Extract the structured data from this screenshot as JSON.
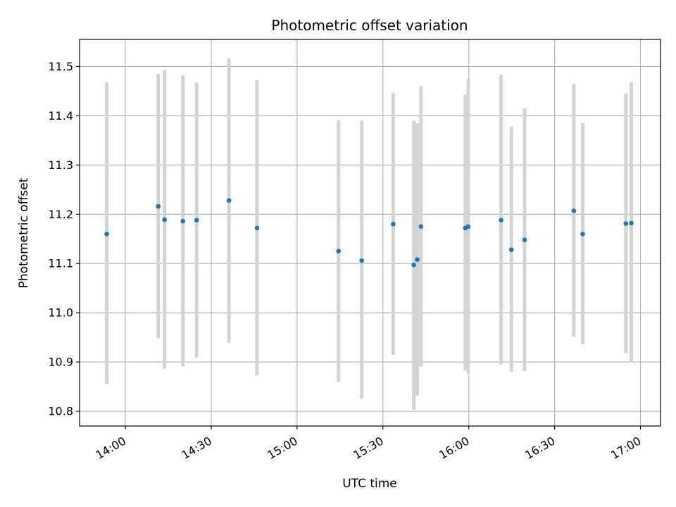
{
  "chart_data": {
    "type": "scatter",
    "title": "Photometric offset variation",
    "xlabel": "UTC time",
    "ylabel": "Photometric offset",
    "x_axis_type": "time",
    "xlim": [
      "13:44",
      "17:07"
    ],
    "ylim": [
      10.77,
      11.555
    ],
    "x_ticks": [
      "14:00",
      "14:30",
      "15:00",
      "15:30",
      "16:00",
      "16:30",
      "17:00"
    ],
    "y_ticks": [
      "10.8",
      "10.9",
      "11.0",
      "11.1",
      "11.2",
      "11.3",
      "11.4",
      "11.5"
    ],
    "grid": true,
    "marker_color": "#1f77b4",
    "errorbar_color": "#d3d3d3",
    "points": [
      {
        "x": "13:53.5",
        "y": 11.16,
        "ylow": 10.855,
        "yhigh": 11.468
      },
      {
        "x": "14:11.5",
        "y": 11.216,
        "ylow": 10.948,
        "yhigh": 11.485
      },
      {
        "x": "14:13.7",
        "y": 11.189,
        "ylow": 10.887,
        "yhigh": 11.493
      },
      {
        "x": "14:20.1",
        "y": 11.186,
        "ylow": 10.891,
        "yhigh": 11.482
      },
      {
        "x": "14:24.9",
        "y": 11.188,
        "ylow": 10.909,
        "yhigh": 11.468
      },
      {
        "x": "14:36.2",
        "y": 11.228,
        "ylow": 10.939,
        "yhigh": 11.517
      },
      {
        "x": "14:46.0",
        "y": 11.172,
        "ylow": 10.873,
        "yhigh": 11.472
      },
      {
        "x": "15:14.5",
        "y": 11.125,
        "ylow": 10.86,
        "yhigh": 11.391
      },
      {
        "x": "15:22.6",
        "y": 11.106,
        "ylow": 10.826,
        "yhigh": 11.39
      },
      {
        "x": "15:33.6",
        "y": 11.18,
        "ylow": 10.915,
        "yhigh": 11.446
      },
      {
        "x": "15:40.8",
        "y": 11.097,
        "ylow": 10.803,
        "yhigh": 11.39
      },
      {
        "x": "15:42.0",
        "y": 11.108,
        "ylow": 10.832,
        "yhigh": 11.385
      },
      {
        "x": "15:43.3",
        "y": 11.175,
        "ylow": 10.891,
        "yhigh": 11.46
      },
      {
        "x": "15:58.8",
        "y": 11.172,
        "ylow": 10.883,
        "yhigh": 11.443
      },
      {
        "x": "15:59.8",
        "y": 11.175,
        "ylow": 10.877,
        "yhigh": 11.475
      },
      {
        "x": "16:11.3",
        "y": 11.188,
        "ylow": 10.895,
        "yhigh": 11.483
      },
      {
        "x": "16:14.9",
        "y": 11.128,
        "ylow": 10.88,
        "yhigh": 11.378
      },
      {
        "x": "16:19.5",
        "y": 11.148,
        "ylow": 10.882,
        "yhigh": 11.415
      },
      {
        "x": "16:36.7",
        "y": 11.207,
        "ylow": 10.952,
        "yhigh": 11.465
      },
      {
        "x": "16:39.8",
        "y": 11.16,
        "ylow": 10.936,
        "yhigh": 11.385
      },
      {
        "x": "16:54.9",
        "y": 11.181,
        "ylow": 10.918,
        "yhigh": 11.445
      },
      {
        "x": "16:56.8",
        "y": 11.182,
        "ylow": 10.899,
        "yhigh": 11.468
      }
    ]
  }
}
